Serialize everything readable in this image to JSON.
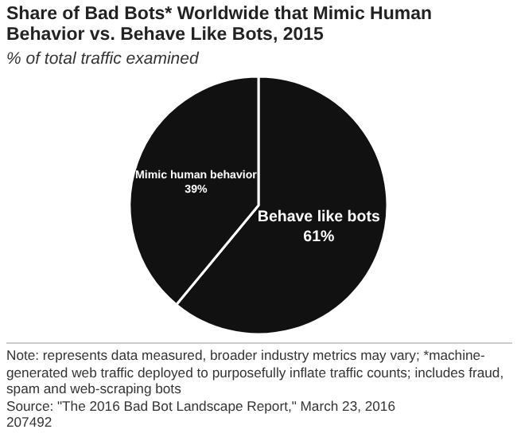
{
  "chart_data": {
    "type": "pie",
    "title": "Share of Bad Bots* Worldwide that Mimic Human Behavior vs. Behave Like Bots, 2015",
    "subtitle": "% of total traffic examined",
    "categories": [
      "Behave like bots",
      "Mimic human behavior"
    ],
    "values": [
      61,
      39
    ],
    "colors": [
      "#111111",
      "#111111"
    ],
    "value_labels": [
      "61%",
      "39%"
    ],
    "legend": false,
    "annotations": [
      "Note: represents data measured, broader industry metrics may vary; *machine-generated web traffic deployed to purposefully inflate traffic counts; includes fraud, spam and web-scraping bots",
      "Source: \"The 2016 Bad Bot Landscape Report,\" March 23, 2016",
      "207492"
    ]
  }
}
